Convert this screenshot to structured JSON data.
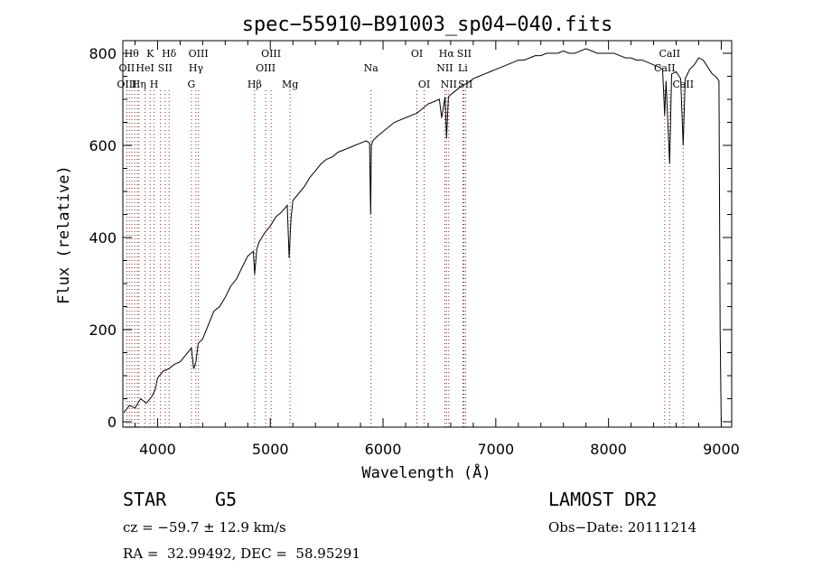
{
  "chart_data": {
    "type": "line",
    "title": "spec−55910−B91003_sp04−040.fits",
    "xlabel": "Wavelength (Å)",
    "ylabel": "Flux (relative)",
    "xlim": [
      3700,
      9100
    ],
    "ylim": [
      0,
      820
    ],
    "x_ticks": [
      4000,
      5000,
      6000,
      7000,
      8000,
      9000
    ],
    "y_ticks": [
      0,
      200,
      400,
      600,
      800
    ],
    "grid": false,
    "legend": "none",
    "series": [
      {
        "line_color": "#000000",
        "x": [
          3700,
          3750,
          3800,
          3850,
          3900,
          3950,
          3980,
          4000,
          4050,
          4100,
          4150,
          4200,
          4250,
          4300,
          4320,
          4340,
          4360,
          4400,
          4450,
          4500,
          4550,
          4600,
          4650,
          4700,
          4750,
          4800,
          4850,
          4861,
          4880,
          4900,
          4950,
          5000,
          5050,
          5100,
          5150,
          5167,
          5183,
          5200,
          5250,
          5300,
          5350,
          5400,
          5450,
          5500,
          5550,
          5600,
          5650,
          5700,
          5750,
          5800,
          5850,
          5880,
          5890,
          5896,
          5910,
          5950,
          6000,
          6050,
          6100,
          6150,
          6200,
          6250,
          6300,
          6350,
          6400,
          6450,
          6500,
          6520,
          6550,
          6563,
          6580,
          6600,
          6650,
          6700,
          6750,
          6800,
          6850,
          6900,
          6950,
          7000,
          7050,
          7100,
          7150,
          7200,
          7250,
          7300,
          7350,
          7400,
          7450,
          7500,
          7550,
          7600,
          7650,
          7700,
          7750,
          7800,
          7850,
          7900,
          7950,
          8000,
          8050,
          8100,
          8150,
          8200,
          8250,
          8300,
          8350,
          8400,
          8450,
          8480,
          8498,
          8510,
          8542,
          8560,
          8600,
          8640,
          8662,
          8680,
          8720,
          8760,
          8800,
          8840,
          8880,
          8920,
          8950,
          8980,
          8990,
          9000
        ],
        "y": [
          20,
          35,
          30,
          50,
          40,
          55,
          70,
          95,
          110,
          115,
          125,
          130,
          145,
          160,
          115,
          130,
          170,
          180,
          210,
          240,
          250,
          270,
          295,
          310,
          335,
          360,
          370,
          320,
          375,
          390,
          410,
          425,
          445,
          455,
          470,
          355,
          440,
          480,
          495,
          510,
          530,
          545,
          560,
          570,
          575,
          585,
          590,
          595,
          600,
          605,
          610,
          605,
          450,
          600,
          610,
          620,
          630,
          640,
          650,
          655,
          660,
          665,
          670,
          680,
          690,
          695,
          700,
          660,
          705,
          615,
          705,
          710,
          720,
          730,
          735,
          745,
          750,
          755,
          760,
          765,
          770,
          775,
          780,
          785,
          785,
          790,
          795,
          795,
          800,
          800,
          800,
          805,
          800,
          800,
          805,
          810,
          805,
          800,
          800,
          800,
          800,
          795,
          790,
          790,
          785,
          785,
          780,
          775,
          770,
          765,
          665,
          740,
          560,
          755,
          760,
          745,
          600,
          745,
          765,
          775,
          790,
          785,
          770,
          755,
          750,
          740,
          200,
          0
        ]
      }
    ],
    "line_markers": {
      "color": "#8b2323",
      "x": [
        3727,
        3750,
        3771,
        3798,
        3820,
        3835,
        3889,
        3934,
        3969,
        4026,
        4068,
        4102,
        4300,
        4340,
        4363,
        4861,
        4959,
        5007,
        5175,
        5893,
        6300,
        6364,
        6548,
        6563,
        6583,
        6708,
        6717,
        6731,
        8498,
        8542,
        8662
      ],
      "labels": [
        {
          "text": "Hθ",
          "wl": 3770,
          "row": 1
        },
        {
          "text": "K",
          "wl": 3934,
          "row": 1
        },
        {
          "text": "Hδ",
          "wl": 4102,
          "row": 1
        },
        {
          "text": "OIII",
          "wl": 4363,
          "row": 1
        },
        {
          "text": "OIII",
          "wl": 5007,
          "row": 1
        },
        {
          "text": "OI",
          "wl": 6300,
          "row": 1
        },
        {
          "text": "Hα",
          "wl": 6563,
          "row": 1
        },
        {
          "text": "SII",
          "wl": 6720,
          "row": 1
        },
        {
          "text": "CaII",
          "wl": 8542,
          "row": 1
        },
        {
          "text": "OII",
          "wl": 3727,
          "row": 2
        },
        {
          "text": "HeI",
          "wl": 3889,
          "row": 2
        },
        {
          "text": "SII",
          "wl": 4068,
          "row": 2
        },
        {
          "text": "Hγ",
          "wl": 4340,
          "row": 2
        },
        {
          "text": "OIII",
          "wl": 4959,
          "row": 2
        },
        {
          "text": "Na",
          "wl": 5893,
          "row": 2
        },
        {
          "text": "NII",
          "wl": 6548,
          "row": 2
        },
        {
          "text": "Li",
          "wl": 6708,
          "row": 2
        },
        {
          "text": "CaII",
          "wl": 8498,
          "row": 2
        },
        {
          "text": "OIII",
          "wl": 3727,
          "row": 3
        },
        {
          "text": "Hη",
          "wl": 3835,
          "row": 3
        },
        {
          "text": "H",
          "wl": 3969,
          "row": 3
        },
        {
          "text": "G",
          "wl": 4300,
          "row": 3
        },
        {
          "text": "Hβ",
          "wl": 4861,
          "row": 3
        },
        {
          "text": "Mg",
          "wl": 5175,
          "row": 3
        },
        {
          "text": "OI",
          "wl": 6364,
          "row": 3
        },
        {
          "text": "NII",
          "wl": 6583,
          "row": 3
        },
        {
          "text": "SII",
          "wl": 6731,
          "row": 3
        },
        {
          "text": "CaII",
          "wl": 8662,
          "row": 3
        }
      ]
    }
  },
  "info": {
    "class_label": "STAR",
    "subclass": "G5",
    "survey": "LAMOST DR2",
    "velocity": "cz = −59.7 ± 12.9 km/s",
    "obs_date": "Obs−Date: 20111214",
    "coordinates": "RA =  32.99492, DEC =  58.95291"
  }
}
